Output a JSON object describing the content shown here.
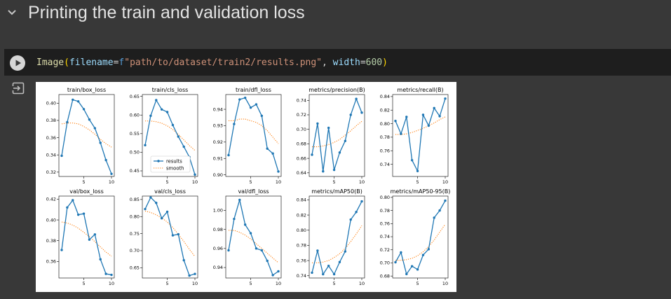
{
  "section": {
    "title": "Printing the train and validation loss"
  },
  "cell": {
    "code": {
      "fn": "Image",
      "open_paren": "(",
      "arg1_name": "filename",
      "eq": "=",
      "fstring_prefix": "f",
      "arg1_value": "\"path/to/dataset/train2/results.png\"",
      "comma": ", ",
      "arg2_name": "width",
      "arg2_value": "600",
      "close_paren": ")"
    }
  },
  "colors": {
    "results": "#1f77b4",
    "smooth": "#ff7f0e",
    "page_bg": "#383838",
    "code_bg": "#1e1e1e"
  },
  "icons": {
    "section_toggle": "chevron-down-icon",
    "run": "play-icon",
    "output_menu": "output-redirect-icon"
  },
  "chart_data": [
    {
      "type": "line",
      "title": "train/box_loss",
      "x": [
        1,
        2,
        3,
        4,
        5,
        6,
        7,
        8,
        9,
        10
      ],
      "ylim": [
        0.315,
        0.41
      ],
      "yticks": [
        0.32,
        0.34,
        0.36,
        0.38,
        0.4
      ],
      "yticklabels": [
        "0.32",
        "0.34",
        "0.36",
        "0.38",
        "0.40"
      ],
      "xticks": [
        5,
        10
      ],
      "series": [
        {
          "name": "results",
          "values": [
            0.339,
            0.378,
            0.404,
            0.402,
            0.393,
            0.381,
            0.371,
            0.354,
            0.334,
            0.318
          ]
        },
        {
          "name": "smooth",
          "values": [
            0.376,
            0.377,
            0.377,
            0.376,
            0.373,
            0.369,
            0.364,
            0.358,
            0.353,
            0.349
          ]
        }
      ]
    },
    {
      "type": "line",
      "title": "train/cls_loss",
      "x": [
        1,
        2,
        3,
        4,
        5,
        6,
        7,
        8,
        9,
        10
      ],
      "ylim": [
        0.435,
        0.655
      ],
      "yticks": [
        0.45,
        0.5,
        0.55,
        0.6,
        0.65
      ],
      "yticklabels": [
        "0.45",
        "0.50",
        "0.55",
        "0.60",
        "0.65"
      ],
      "xticks": [
        5,
        10
      ],
      "series": [
        {
          "name": "results",
          "values": [
            0.519,
            0.598,
            0.64,
            0.615,
            0.608,
            0.573,
            0.542,
            0.515,
            0.487,
            0.44
          ]
        },
        {
          "name": "smooth",
          "values": [
            0.584,
            0.584,
            0.582,
            0.578,
            0.571,
            0.561,
            0.548,
            0.533,
            0.518,
            0.505
          ]
        }
      ]
    },
    {
      "type": "line",
      "title": "train/dfl_loss",
      "x": [
        1,
        2,
        3,
        4,
        5,
        6,
        7,
        8,
        9,
        10
      ],
      "ylim": [
        0.899,
        0.949
      ],
      "yticks": [
        0.9,
        0.91,
        0.92,
        0.93,
        0.94
      ],
      "yticklabels": [
        "0.90",
        "0.91",
        "0.92",
        "0.93",
        "0.94"
      ],
      "xticks": [
        5,
        10
      ],
      "series": [
        {
          "name": "results",
          "values": [
            0.912,
            0.931,
            0.946,
            0.947,
            0.941,
            0.943,
            0.936,
            0.916,
            0.913,
            0.902
          ]
        },
        {
          "name": "smooth",
          "values": [
            0.933,
            0.933,
            0.934,
            0.934,
            0.933,
            0.932,
            0.93,
            0.927,
            0.923,
            0.919
          ]
        }
      ]
    },
    {
      "type": "line",
      "title": "metrics/precision(B)",
      "x": [
        1,
        2,
        3,
        4,
        5,
        6,
        7,
        8,
        9,
        10
      ],
      "ylim": [
        0.635,
        0.748
      ],
      "yticks": [
        0.64,
        0.66,
        0.68,
        0.7,
        0.72,
        0.74
      ],
      "yticklabels": [
        "0.64",
        "0.66",
        "0.68",
        "0.70",
        "0.72",
        "0.74"
      ],
      "xticks": [
        5,
        10
      ],
      "series": [
        {
          "name": "results",
          "values": [
            0.665,
            0.708,
            0.642,
            0.702,
            0.644,
            0.668,
            0.684,
            0.72,
            0.742,
            0.723
          ]
        },
        {
          "name": "smooth",
          "values": [
            0.676,
            0.676,
            0.677,
            0.679,
            0.682,
            0.686,
            0.692,
            0.698,
            0.705,
            0.711
          ]
        }
      ]
    },
    {
      "type": "line",
      "title": "metrics/recall(B)",
      "x": [
        1,
        2,
        3,
        4,
        5,
        6,
        7,
        8,
        9,
        10
      ],
      "ylim": [
        0.722,
        0.843
      ],
      "yticks": [
        0.74,
        0.76,
        0.78,
        0.8,
        0.82,
        0.84
      ],
      "yticklabels": [
        "0.74",
        "0.76",
        "0.78",
        "0.80",
        "0.82",
        "0.84"
      ],
      "xticks": [
        5,
        10
      ],
      "series": [
        {
          "name": "results",
          "values": [
            0.804,
            0.785,
            0.81,
            0.746,
            0.73,
            0.813,
            0.797,
            0.823,
            0.811,
            0.837
          ]
        },
        {
          "name": "smooth",
          "values": [
            0.784,
            0.784,
            0.785,
            0.787,
            0.79,
            0.793,
            0.797,
            0.801,
            0.806,
            0.81
          ]
        }
      ]
    },
    {
      "type": "line",
      "title": "val/box_loss",
      "x": [
        1,
        2,
        3,
        4,
        5,
        6,
        7,
        8,
        9,
        10
      ],
      "ylim": [
        0.344,
        0.423
      ],
      "yticks": [
        0.36,
        0.38,
        0.4,
        0.42
      ],
      "yticklabels": [
        "0.36",
        "0.38",
        "0.40",
        "0.42"
      ],
      "xticks": [
        5,
        10
      ],
      "series": [
        {
          "name": "results",
          "values": [
            0.371,
            0.412,
            0.419,
            0.405,
            0.406,
            0.381,
            0.386,
            0.362,
            0.348,
            0.347
          ]
        },
        {
          "name": "smooth",
          "values": [
            0.398,
            0.397,
            0.395,
            0.392,
            0.388,
            0.384,
            0.379,
            0.374,
            0.369,
            0.365
          ]
        }
      ]
    },
    {
      "type": "line",
      "title": "val/cls_loss",
      "x": [
        1,
        2,
        3,
        4,
        5,
        6,
        7,
        8,
        9,
        10
      ],
      "ylim": [
        0.62,
        0.86
      ],
      "yticks": [
        0.65,
        0.7,
        0.75,
        0.8,
        0.85
      ],
      "yticklabels": [
        "0.65",
        "0.70",
        "0.75",
        "0.80",
        "0.85"
      ],
      "xticks": [
        5,
        10
      ],
      "series": [
        {
          "name": "results",
          "values": [
            0.822,
            0.856,
            0.84,
            0.795,
            0.814,
            0.745,
            0.748,
            0.672,
            0.627,
            0.632
          ]
        },
        {
          "name": "smooth",
          "values": [
            0.816,
            0.812,
            0.805,
            0.796,
            0.784,
            0.768,
            0.748,
            0.727,
            0.704,
            0.683
          ]
        }
      ]
    },
    {
      "type": "line",
      "title": "val/dfl_loss",
      "x": [
        1,
        2,
        3,
        4,
        5,
        6,
        7,
        8,
        9,
        10
      ],
      "ylim": [
        0.929,
        1.015
      ],
      "yticks": [
        0.94,
        0.96,
        0.98,
        1.0
      ],
      "yticklabels": [
        "0.94",
        "0.96",
        "0.98",
        "1.00"
      ],
      "xticks": [
        5,
        10
      ],
      "series": [
        {
          "name": "results",
          "values": [
            0.958,
            0.991,
            1.011,
            0.985,
            0.976,
            0.96,
            0.958,
            0.947,
            0.932,
            0.936
          ]
        },
        {
          "name": "smooth",
          "values": [
            0.979,
            0.979,
            0.977,
            0.974,
            0.97,
            0.965,
            0.96,
            0.955,
            0.95,
            0.945
          ]
        }
      ]
    },
    {
      "type": "line",
      "title": "metrics/mAP50(B)",
      "x": [
        1,
        2,
        3,
        4,
        5,
        6,
        7,
        8,
        9,
        10
      ],
      "ylim": [
        0.737,
        0.845
      ],
      "yticks": [
        0.74,
        0.76,
        0.78,
        0.8,
        0.82,
        0.84
      ],
      "yticklabels": [
        "0.74",
        "0.76",
        "0.78",
        "0.80",
        "0.82",
        "0.84"
      ],
      "xticks": [
        5,
        10
      ],
      "series": [
        {
          "name": "results",
          "values": [
            0.744,
            0.773,
            0.742,
            0.753,
            0.742,
            0.758,
            0.772,
            0.814,
            0.824,
            0.838
          ]
        },
        {
          "name": "smooth",
          "values": [
            0.757,
            0.757,
            0.758,
            0.76,
            0.764,
            0.769,
            0.776,
            0.785,
            0.795,
            0.806
          ]
        }
      ]
    },
    {
      "type": "line",
      "title": "metrics/mAP50-95(B)",
      "x": [
        1,
        2,
        3,
        4,
        5,
        6,
        7,
        8,
        9,
        10
      ],
      "ylim": [
        0.677,
        0.802
      ],
      "yticks": [
        0.68,
        0.7,
        0.72,
        0.74,
        0.76,
        0.78,
        0.8
      ],
      "yticklabels": [
        "0.68",
        "0.70",
        "0.72",
        "0.74",
        "0.76",
        "0.78",
        "0.80"
      ],
      "xticks": [
        5,
        10
      ],
      "series": [
        {
          "name": "results",
          "values": [
            0.701,
            0.716,
            0.683,
            0.695,
            0.69,
            0.712,
            0.721,
            0.769,
            0.78,
            0.795
          ]
        },
        {
          "name": "smooth",
          "values": [
            0.704,
            0.704,
            0.705,
            0.707,
            0.711,
            0.717,
            0.725,
            0.735,
            0.747,
            0.759
          ]
        }
      ]
    }
  ],
  "legend": {
    "panel": 1,
    "items": [
      {
        "label": "results",
        "style": "solid-marker"
      },
      {
        "label": "smooth",
        "style": "dotted"
      }
    ]
  }
}
